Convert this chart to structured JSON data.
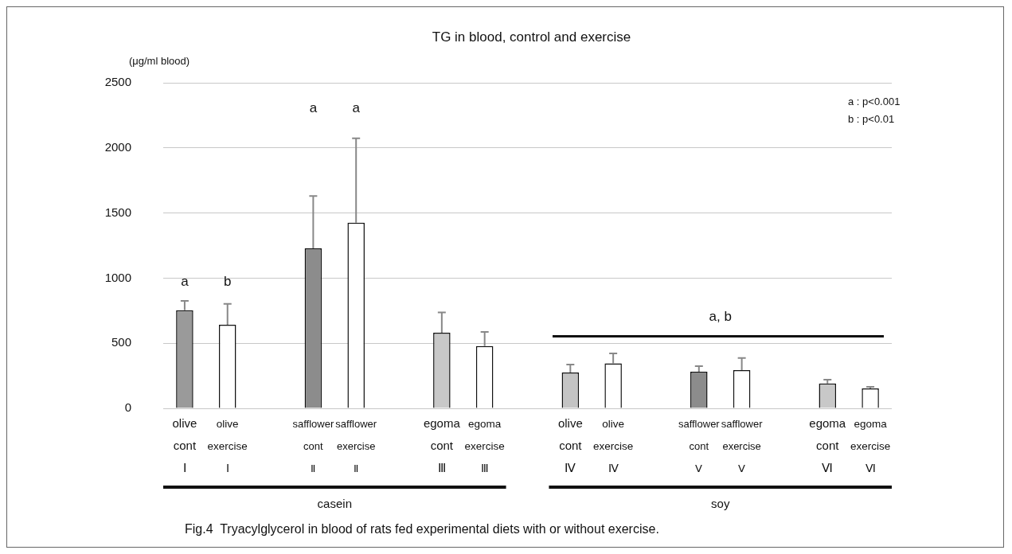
{
  "chart_data": {
    "type": "bar",
    "title": "TG in blood, control and exercise",
    "ylabel": "(μg/ml blood)",
    "categories": [
      "olive\ncont\nⅠ",
      "olive\nexercise\nⅠ",
      null,
      "safflower\ncont\nⅡ",
      "safflower\nexercise\nⅡ",
      null,
      "egoma\ncont\nⅢ",
      "egoma\nexercise\nⅢ",
      null,
      "olive\ncont\nⅣ",
      "olive\nexercise\nⅣ",
      null,
      "safflower\ncont\nⅤ",
      "safflower\nexercise\nⅤ",
      null,
      "egoma\ncont\nⅥ",
      "egoma\nexercise\nⅥ"
    ],
    "values": [
      754,
      642,
      null,
      1229,
      1426,
      null,
      581,
      479,
      null,
      275,
      346,
      null,
      281,
      293,
      null,
      191,
      153
    ],
    "colors": [
      "#9a9a9a",
      "#ffffff",
      null,
      "#8c8c8c",
      "#ffffff",
      null,
      "#c8c8c8",
      "#ffffff",
      null,
      "#c4c4c4",
      "#ffffff",
      null,
      "#8c8c8c",
      "#ffffff",
      null,
      "#c8c8c8",
      "#ffffff"
    ],
    "errors": [
      [
        754,
        825
      ],
      [
        642,
        803
      ],
      null,
      [
        1229,
        1630
      ],
      [
        1426,
        2074
      ],
      null,
      [
        581,
        737
      ],
      [
        479,
        587
      ],
      null,
      [
        275,
        336
      ],
      [
        346,
        422
      ],
      null,
      [
        281,
        324
      ],
      [
        293,
        387
      ],
      null,
      [
        191,
        220
      ],
      [
        153,
        165
      ]
    ],
    "ylim": [
      0,
      2500
    ],
    "yticks": [
      0,
      500,
      1000,
      1500,
      2000,
      2500
    ],
    "grid": "y",
    "legend": false,
    "annotations": [
      "a",
      "b",
      "a",
      "a",
      "a : p<0.001",
      "b : p<0.01",
      "a, b",
      "casein",
      "soy",
      "Fig.4  Tryacylglycerol in blood of rats fed experimental diets with or without exercise."
    ]
  }
}
